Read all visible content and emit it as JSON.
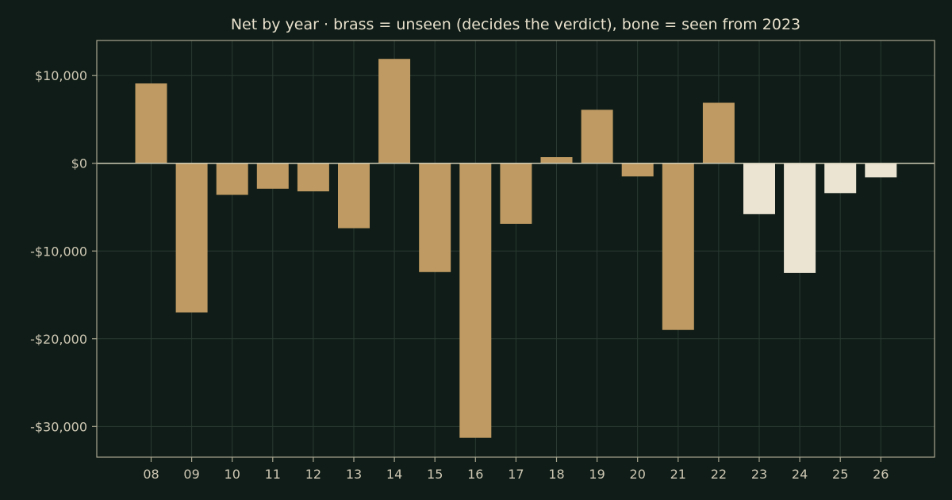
{
  "chart_data": {
    "type": "bar",
    "title": "Net by year  ·  brass = unseen (decides the verdict), bone = seen from 2023",
    "xlabel": "",
    "ylabel": "",
    "categories": [
      "08",
      "09",
      "10",
      "11",
      "12",
      "13",
      "14",
      "15",
      "16",
      "17",
      "18",
      "19",
      "20",
      "21",
      "22",
      "23",
      "24",
      "25",
      "26"
    ],
    "values": [
      9100,
      -17000,
      -3600,
      -2900,
      -3200,
      -7400,
      11900,
      -12400,
      -31300,
      -6900,
      700,
      6100,
      -1500,
      -19000,
      6900,
      -5800,
      -12500,
      -3400,
      -1600
    ],
    "groups": [
      "unseen",
      "unseen",
      "unseen",
      "unseen",
      "unseen",
      "unseen",
      "unseen",
      "unseen",
      "unseen",
      "unseen",
      "unseen",
      "unseen",
      "unseen",
      "unseen",
      "unseen",
      "seen",
      "seen",
      "seen",
      "seen"
    ],
    "ylim": [
      -33500,
      14000
    ],
    "yticks": [
      10000,
      0,
      -10000,
      -20000,
      -30000
    ],
    "ytick_labels": [
      "$10,000",
      "$0",
      "-$10,000",
      "-$20,000",
      "-$30,000"
    ],
    "grid": true,
    "colors": {
      "unseen": "#bf9a62",
      "seen": "#ebe4d3"
    }
  }
}
